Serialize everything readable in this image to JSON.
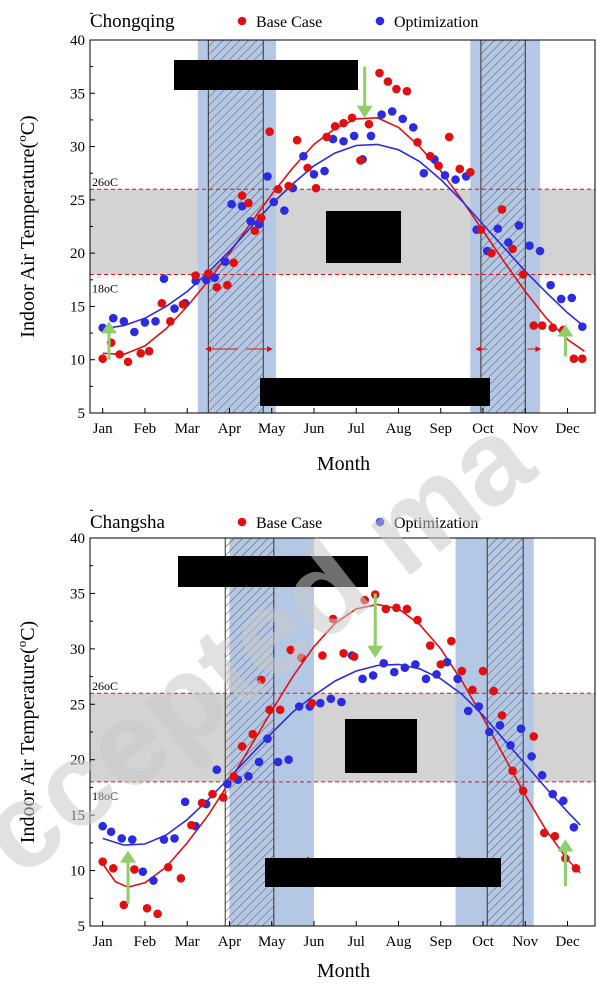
{
  "colors": {
    "base": "#e01010",
    "optimization": "#2b2be0",
    "comfort_band": "#d3d3d3",
    "transition_band": "#b4c8e6",
    "arrow": "#8fce6a",
    "redaction": "#000000"
  },
  "chart_data": [
    {
      "type": "scatter",
      "title": "Chongqing",
      "xlabel": "Month",
      "ylabel": "Indoor Air Temperature(oC)",
      "x_ticks": [
        "Jan",
        "Feb",
        "Mar",
        "Apr",
        "May",
        "Jun",
        "Jul",
        "Aug",
        "Sep",
        "Oct",
        "Nov",
        "Dec"
      ],
      "ylim": [
        5,
        40
      ],
      "y_ticks": [
        5,
        10,
        15,
        20,
        25,
        30,
        35,
        40
      ],
      "comfort_band": {
        "low": 18,
        "high": 26,
        "low_label": "18oC",
        "high_label": "26oC"
      },
      "transition_bands": [
        {
          "start": 3.25,
          "end": 5.1
        },
        {
          "start": 9.7,
          "end": 11.35
        }
      ],
      "hatched_bands": [
        {
          "start": 3.5,
          "end": 4.8
        },
        {
          "start": 9.95,
          "end": 11.0
        }
      ],
      "horizontal_arrows": [
        {
          "from": 4.2,
          "to": 3.45,
          "y": 11
        },
        {
          "from": 4.4,
          "to": 5.0,
          "y": 11
        },
        {
          "from": 10.1,
          "to": 9.85,
          "y": 11
        },
        {
          "from": 11.05,
          "to": 11.35,
          "y": 11
        }
      ],
      "vertical_arrows": [
        {
          "x": 1.15,
          "from": 10,
          "to": 13.6
        },
        {
          "x": 7.2,
          "from": 37.5,
          "to": 32.7
        },
        {
          "x": 11.95,
          "from": 10.3,
          "to": 13.3
        }
      ],
      "series": [
        {
          "name": "Base Case",
          "x": [
            1.0,
            1.2,
            1.4,
            1.6,
            1.9,
            2.1,
            2.4,
            2.6,
            2.9,
            3.2,
            3.5,
            3.7,
            3.95,
            4.1,
            4.3,
            4.45,
            4.6,
            4.75,
            4.95,
            5.15,
            5.4,
            5.6,
            5.85,
            6.05,
            6.3,
            6.5,
            6.7,
            6.9,
            7.1,
            7.3,
            7.55,
            7.75,
            7.95,
            8.2,
            8.45,
            8.75,
            8.95,
            9.2,
            9.45,
            9.7,
            9.95,
            10.2,
            10.45,
            10.7,
            10.95,
            11.2,
            11.4,
            11.65,
            11.9,
            12.15,
            12.35
          ],
          "y": [
            10.1,
            11.6,
            10.5,
            9.8,
            10.6,
            10.8,
            15.3,
            13.6,
            15.2,
            17.9,
            18.1,
            16.8,
            17.0,
            19.1,
            25.4,
            24.7,
            22.1,
            23.3,
            31.4,
            26.0,
            26.3,
            30.6,
            28.0,
            26.1,
            30.9,
            31.9,
            32.2,
            32.7,
            28.7,
            32.1,
            36.9,
            36.1,
            35.4,
            35.2,
            30.4,
            29.1,
            28.2,
            30.9,
            27.9,
            27.6,
            22.2,
            20.0,
            24.1,
            20.4,
            18.0,
            13.2,
            13.2,
            13.0,
            12.8,
            10.1,
            10.1
          ],
          "fit": [
            [
              1,
              10.6
            ],
            [
              1.5,
              10.5
            ],
            [
              2,
              11.3
            ],
            [
              2.5,
              12.9
            ],
            [
              3,
              15.0
            ],
            [
              3.5,
              17.4
            ],
            [
              4,
              20.0
            ],
            [
              4.5,
              22.8
            ],
            [
              5,
              25.5
            ],
            [
              5.5,
              28.0
            ],
            [
              6,
              30.2
            ],
            [
              6.5,
              31.7
            ],
            [
              7,
              32.6
            ],
            [
              7.5,
              32.7
            ],
            [
              8,
              31.8
            ],
            [
              8.5,
              30.0
            ],
            [
              9,
              27.7
            ],
            [
              9.5,
              25.0
            ],
            [
              10,
              22.1
            ],
            [
              10.5,
              19.2
            ],
            [
              11,
              16.4
            ],
            [
              11.5,
              13.9
            ],
            [
              12,
              11.9
            ],
            [
              12.4,
              10.8
            ]
          ]
        },
        {
          "name": "Optimization",
          "x": [
            1.0,
            1.25,
            1.5,
            1.75,
            2.0,
            2.25,
            2.45,
            2.7,
            2.95,
            3.2,
            3.45,
            3.65,
            3.9,
            4.05,
            4.3,
            4.5,
            4.7,
            4.9,
            5.05,
            5.3,
            5.5,
            5.75,
            6.0,
            6.25,
            6.45,
            6.7,
            6.95,
            7.15,
            7.35,
            7.6,
            7.85,
            8.1,
            8.35,
            8.6,
            8.85,
            9.1,
            9.35,
            9.6,
            9.85,
            10.1,
            10.35,
            10.6,
            10.85,
            11.1,
            11.35,
            11.6,
            11.85,
            12.1,
            12.35
          ],
          "y": [
            13.0,
            13.9,
            13.6,
            12.6,
            13.5,
            13.6,
            17.6,
            14.8,
            15.3,
            17.4,
            17.5,
            17.7,
            19.2,
            24.6,
            24.4,
            23.0,
            22.7,
            27.2,
            24.8,
            24.0,
            26.1,
            29.1,
            27.4,
            27.7,
            30.7,
            30.5,
            31.0,
            28.8,
            31.0,
            33.0,
            33.3,
            32.6,
            31.8,
            27.5,
            28.8,
            27.3,
            26.9,
            27.2,
            22.2,
            20.2,
            22.3,
            21.0,
            22.6,
            20.7,
            20.2,
            17.0,
            15.7,
            15.8,
            13.1
          ],
          "fit": [
            [
              1,
              12.9
            ],
            [
              1.5,
              13.2
            ],
            [
              2,
              13.9
            ],
            [
              2.5,
              15.0
            ],
            [
              3,
              16.4
            ],
            [
              3.5,
              18.2
            ],
            [
              4,
              20.2
            ],
            [
              4.5,
              22.4
            ],
            [
              5,
              24.6
            ],
            [
              5.5,
              26.5
            ],
            [
              6,
              28.2
            ],
            [
              6.5,
              29.4
            ],
            [
              7,
              30.1
            ],
            [
              7.5,
              30.2
            ],
            [
              8,
              29.7
            ],
            [
              8.5,
              28.6
            ],
            [
              9,
              26.9
            ],
            [
              9.5,
              24.9
            ],
            [
              10,
              22.7
            ],
            [
              10.5,
              20.5
            ],
            [
              11,
              18.3
            ],
            [
              11.5,
              16.3
            ],
            [
              12,
              14.4
            ],
            [
              12.4,
              13.1
            ]
          ]
        }
      ]
    },
    {
      "type": "scatter",
      "title": "Changsha",
      "xlabel": "Month",
      "ylabel": "Indoor Air Temperature(oC)",
      "x_ticks": [
        "Jan",
        "Feb",
        "Mar",
        "Apr",
        "May",
        "Jun",
        "Jul",
        "Aug",
        "Sep",
        "Oct",
        "Nov",
        "Dec"
      ],
      "ylim": [
        5,
        40
      ],
      "y_ticks": [
        5,
        10,
        15,
        20,
        25,
        30,
        35,
        40
      ],
      "comfort_band": {
        "low": 18,
        "high": 26,
        "low_label": "18oC",
        "high_label": "26oC"
      },
      "transition_bands": [
        {
          "start": 4.0,
          "end": 6.0
        },
        {
          "start": 9.35,
          "end": 11.2
        }
      ],
      "hatched_bands": [
        {
          "start": 3.9,
          "end": 5.05
        },
        {
          "start": 10.1,
          "end": 10.95
        }
      ],
      "horizontal_arrows": [
        {
          "from": 5.0,
          "to": 5.95,
          "y": 11
        },
        {
          "from": 10.0,
          "to": 9.35,
          "y": 11
        }
      ],
      "vertical_arrows": [
        {
          "x": 1.6,
          "from": 7.0,
          "to": 11.8
        },
        {
          "x": 7.45,
          "from": 35.0,
          "to": 29.2
        },
        {
          "x": 11.95,
          "from": 8.6,
          "to": 12.8
        }
      ],
      "series": [
        {
          "name": "Base Case",
          "x": [
            1.0,
            1.25,
            1.5,
            1.75,
            2.05,
            2.3,
            2.55,
            2.85,
            3.1,
            3.35,
            3.6,
            3.85,
            4.1,
            4.3,
            4.55,
            4.75,
            4.95,
            5.2,
            5.45,
            5.7,
            5.95,
            6.2,
            6.45,
            6.7,
            6.95,
            7.2,
            7.45,
            7.7,
            7.95,
            8.2,
            8.45,
            8.75,
            9.0,
            9.25,
            9.5,
            9.75,
            10.0,
            10.25,
            10.45,
            10.7,
            10.95,
            11.2,
            11.45,
            11.7,
            11.95,
            12.2
          ],
          "y": [
            10.8,
            10.2,
            6.9,
            10.1,
            6.6,
            6.1,
            10.3,
            9.3,
            14.1,
            16.1,
            16.9,
            16.6,
            18.5,
            21.2,
            22.3,
            27.2,
            24.5,
            24.5,
            29.9,
            29.2,
            25.1,
            29.4,
            32.7,
            29.6,
            29.3,
            34.4,
            34.9,
            33.6,
            33.7,
            33.6,
            32.6,
            30.3,
            28.6,
            30.7,
            28.0,
            26.3,
            28.0,
            26.2,
            24.0,
            19.0,
            17.2,
            22.1,
            13.4,
            13.1,
            11.1,
            10.2
          ],
          "fit": [
            [
              1,
              10.6
            ],
            [
              1.3,
              9.0
            ],
            [
              1.6,
              8.5
            ],
            [
              2,
              8.9
            ],
            [
              2.5,
              10.3
            ],
            [
              3,
              12.5
            ],
            [
              3.5,
              15.0
            ],
            [
              4,
              18.0
            ],
            [
              4.5,
              21.2
            ],
            [
              5,
              24.4
            ],
            [
              5.5,
              27.5
            ],
            [
              6,
              30.2
            ],
            [
              6.5,
              32.3
            ],
            [
              7,
              33.6
            ],
            [
              7.5,
              34.0
            ],
            [
              8,
              33.6
            ],
            [
              8.5,
              32.2
            ],
            [
              9,
              30.0
            ],
            [
              9.5,
              27.1
            ],
            [
              10,
              23.8
            ],
            [
              10.5,
              20.3
            ],
            [
              11,
              16.8
            ],
            [
              11.5,
              13.6
            ],
            [
              12,
              11.0
            ],
            [
              12.3,
              9.8
            ]
          ]
        },
        {
          "name": "Optimization",
          "x": [
            1.0,
            1.2,
            1.45,
            1.7,
            1.95,
            2.2,
            2.45,
            2.7,
            2.95,
            3.2,
            3.45,
            3.7,
            3.95,
            4.2,
            4.45,
            4.7,
            4.9,
            5.15,
            5.4,
            5.65,
            5.9,
            6.15,
            6.4,
            6.65,
            6.9,
            7.15,
            7.4,
            7.65,
            7.9,
            8.15,
            8.4,
            8.65,
            8.9,
            9.15,
            9.4,
            9.65,
            9.9,
            10.15,
            10.4,
            10.65,
            10.9,
            11.15,
            11.4,
            11.65,
            11.9,
            12.15
          ],
          "y": [
            14.0,
            13.5,
            12.9,
            12.8,
            9.9,
            9.1,
            12.8,
            12.9,
            16.2,
            14.0,
            16.0,
            19.1,
            17.8,
            18.2,
            18.5,
            19.8,
            21.9,
            19.8,
            20.0,
            24.8,
            24.8,
            25.1,
            25.5,
            25.2,
            29.4,
            27.3,
            27.6,
            28.7,
            27.9,
            28.3,
            28.6,
            27.3,
            27.7,
            28.8,
            27.3,
            24.4,
            24.8,
            22.5,
            23.1,
            21.3,
            22.8,
            20.3,
            18.6,
            16.9,
            16.3,
            13.9
          ],
          "fit": [
            [
              1,
              12.9
            ],
            [
              1.5,
              12.3
            ],
            [
              2,
              12.4
            ],
            [
              2.5,
              13.2
            ],
            [
              3,
              14.6
            ],
            [
              3.5,
              16.4
            ],
            [
              4,
              18.4
            ],
            [
              4.5,
              20.4
            ],
            [
              5,
              22.4
            ],
            [
              5.5,
              24.3
            ],
            [
              6,
              25.8
            ],
            [
              6.5,
              27.1
            ],
            [
              7,
              28.0
            ],
            [
              7.5,
              28.5
            ],
            [
              8,
              28.6
            ],
            [
              8.5,
              28.2
            ],
            [
              9,
              27.3
            ],
            [
              9.5,
              25.9
            ],
            [
              10,
              24.0
            ],
            [
              10.5,
              21.8
            ],
            [
              11,
              19.6
            ],
            [
              11.5,
              17.4
            ],
            [
              12,
              15.3
            ],
            [
              12.3,
              14.1
            ]
          ]
        }
      ]
    }
  ]
}
